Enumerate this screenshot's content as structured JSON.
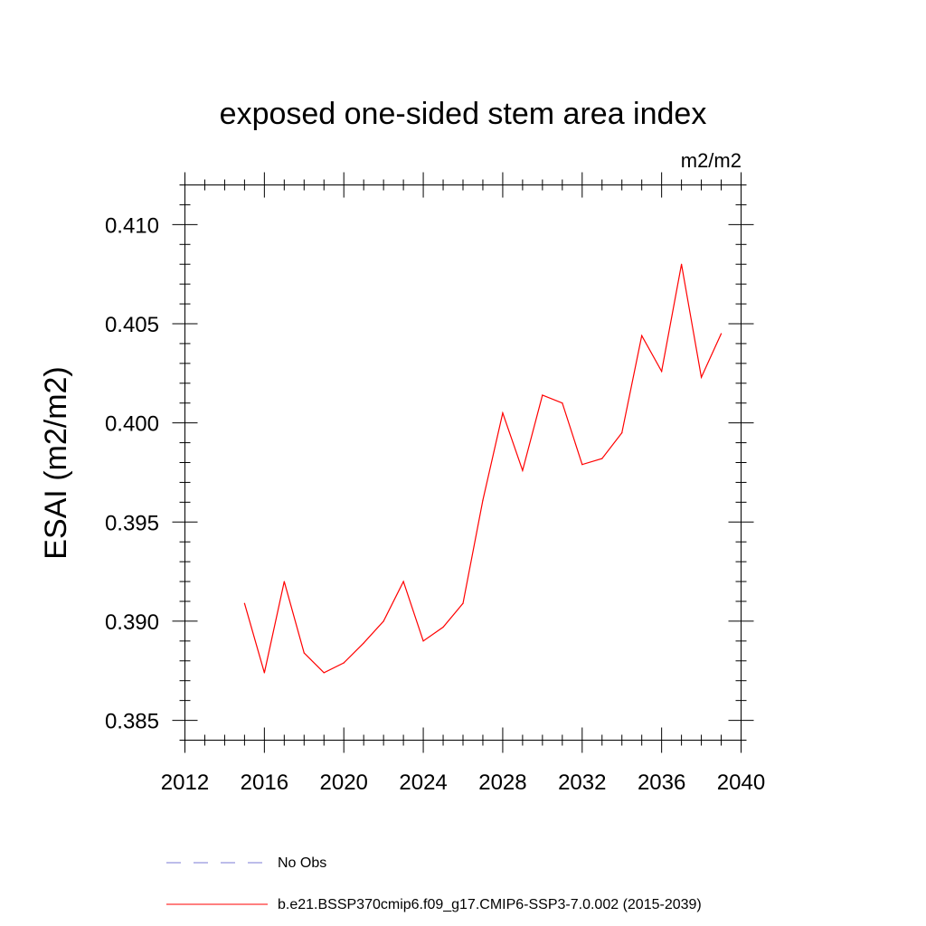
{
  "chart_data": {
    "type": "line",
    "title": "exposed one-sided stem area index",
    "units": "m2/m2",
    "xlabel": "",
    "ylabel": "ESAI  (m2/m2)",
    "xlim": [
      2012,
      2040
    ],
    "ylim": [
      0.384,
      0.412
    ],
    "xticks": [
      2012,
      2016,
      2020,
      2024,
      2028,
      2032,
      2036,
      2040
    ],
    "xtick_labels": [
      "2012",
      "2016",
      "2020",
      "2024",
      "2028",
      "2032",
      "2036",
      "2040"
    ],
    "yticks": [
      0.385,
      0.39,
      0.395,
      0.4,
      0.405,
      0.41
    ],
    "ytick_labels": [
      "0.385",
      "0.390",
      "0.395",
      "0.400",
      "0.405",
      "0.410"
    ],
    "grid": false,
    "legend_position": "bottom",
    "series": [
      {
        "name": "b.e21.BSSP370cmip6.f09_g17.CMIP6-SSP3-7.0.002 (2015-2039)",
        "color": "#ff0000",
        "style": "solid",
        "x": [
          2015,
          2016,
          2017,
          2018,
          2019,
          2020,
          2021,
          2022,
          2023,
          2024,
          2025,
          2026,
          2027,
          2028,
          2029,
          2030,
          2031,
          2032,
          2033,
          2034,
          2035,
          2036,
          2037,
          2038,
          2039
        ],
        "y": [
          0.3909,
          0.3874,
          0.392,
          0.3884,
          0.3874,
          0.3879,
          0.3889,
          0.39,
          0.392,
          0.389,
          0.3897,
          0.3909,
          0.3961,
          0.4005,
          0.3976,
          0.4014,
          0.401,
          0.3979,
          0.3982,
          0.3995,
          0.4044,
          0.4026,
          0.408,
          0.4023,
          0.4045
        ]
      }
    ],
    "legend": [
      {
        "label": "No Obs",
        "color": "#7b7bd6",
        "style": "dashed"
      },
      {
        "label": "b.e21.BSSP370cmip6.f09_g17.CMIP6-SSP3-7.0.002 (2015-2039)",
        "color": "#ff0000",
        "style": "solid"
      }
    ]
  }
}
